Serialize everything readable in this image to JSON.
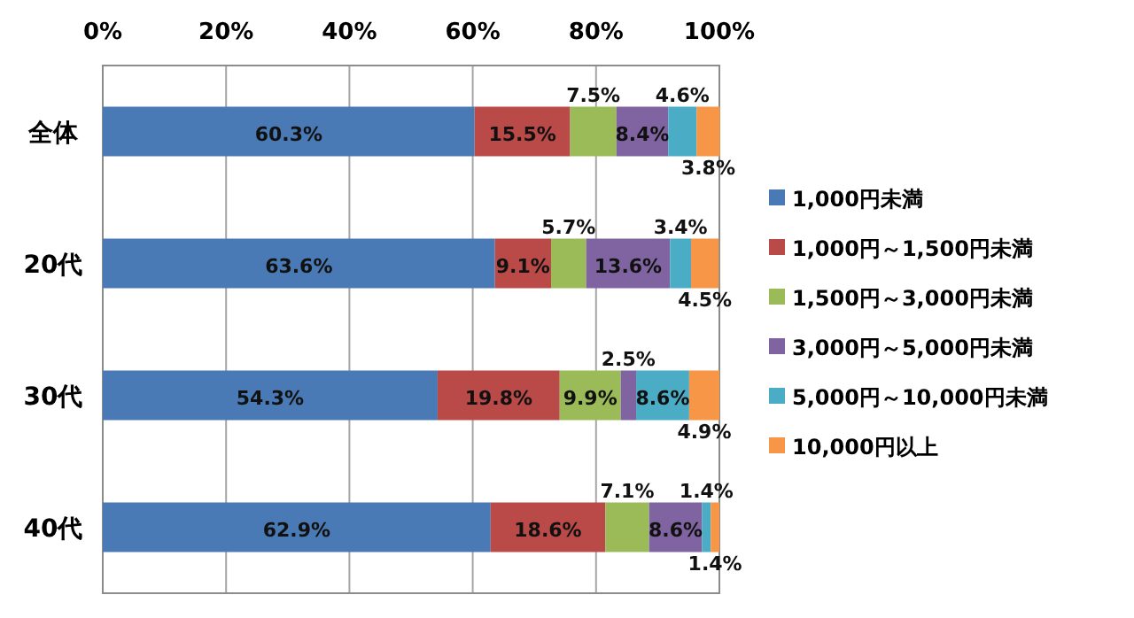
{
  "chart_data": {
    "type": "bar",
    "orientation": "horizontal",
    "stacked": true,
    "categories": [
      "全体",
      "20代",
      "30代",
      "40代"
    ],
    "xlim": [
      0,
      100
    ],
    "xticks": [
      {
        "value": 0,
        "label": "0%"
      },
      {
        "value": 20,
        "label": "20%"
      },
      {
        "value": 40,
        "label": "40%"
      },
      {
        "value": 60,
        "label": "60%"
      },
      {
        "value": 80,
        "label": "80%"
      },
      {
        "value": 100,
        "label": "100%"
      }
    ],
    "grid": "x",
    "legend": "right",
    "series": [
      {
        "name": "1,000円未満",
        "color": "#4a7ab5",
        "values": [
          60.3,
          63.6,
          54.3,
          62.9
        ],
        "value_labels": [
          "60.3%",
          "63.6%",
          "54.3%",
          "62.9%"
        ]
      },
      {
        "name": "1,000円～1,500円未満",
        "color": "#b94a48",
        "values": [
          15.5,
          9.1,
          19.8,
          18.6
        ],
        "value_labels": [
          "15.5%",
          "9.1%",
          "19.8%",
          "18.6%"
        ]
      },
      {
        "name": "1,500円～3,000円未満",
        "color": "#9bbb59",
        "values": [
          7.5,
          5.7,
          9.9,
          7.1
        ],
        "value_labels": [
          "7.5%",
          "5.7%",
          "9.9%",
          "7.1%"
        ]
      },
      {
        "name": "3,000円～5,000円未満",
        "color": "#8064a2",
        "values": [
          8.4,
          13.6,
          2.5,
          8.6
        ],
        "value_labels": [
          "8.4%",
          "13.6%",
          "2.5%",
          "8.6%"
        ]
      },
      {
        "name": "5,000円～10,000円未満",
        "color": "#4bacc6",
        "values": [
          4.6,
          3.4,
          8.6,
          1.4
        ],
        "value_labels": [
          "4.6%",
          "3.4%",
          "8.6%",
          "1.4%"
        ]
      },
      {
        "name": "10,000円以上",
        "color": "#f79646",
        "values": [
          3.8,
          4.5,
          4.9,
          1.4
        ],
        "value_labels": [
          "3.8%",
          "4.5%",
          "4.9%",
          "1.4%"
        ]
      }
    ]
  }
}
